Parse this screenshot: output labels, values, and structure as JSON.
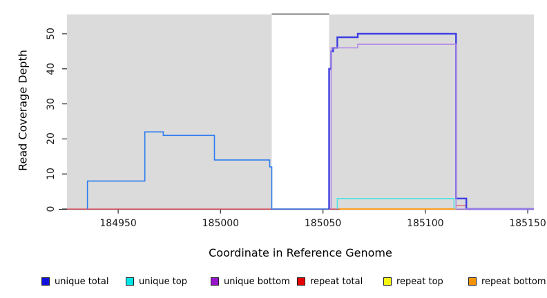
{
  "figure": {
    "xlabel": "Coordinate in Reference Genome",
    "ylabel": "Read Coverage Depth"
  },
  "chart_data": {
    "type": "line",
    "step": true,
    "title": "",
    "xlabel": "Coordinate in Reference Genome",
    "ylabel": "Read Coverage Depth",
    "xlim": [
      184925,
      185153
    ],
    "ylim": [
      0,
      55.5
    ],
    "x_ticks": [
      184950,
      185000,
      185050,
      185100,
      185150
    ],
    "y_ticks": [
      0,
      10,
      20,
      30,
      40,
      50
    ],
    "grid": false,
    "legend_position": "bottom",
    "panel_color": "#DBDBDB",
    "band_border_color": "#8f8f8f",
    "axis_color": "#333333",
    "highlight_region": {
      "x0": 185025,
      "x1": 185053,
      "color": "#FFFFFF"
    },
    "series": [
      {
        "name": "unique total",
        "legend_color": "#1111DD",
        "z": 4,
        "segments": [
          {
            "color": "#2D7DF0",
            "width": 1.6,
            "points": [
              [
                184935,
                0
              ],
              [
                184935,
                8
              ],
              [
                184963,
                8
              ],
              [
                184963,
                22
              ],
              [
                184972,
                22
              ],
              [
                184972,
                21
              ],
              [
                184997,
                21
              ],
              [
                184997,
                14
              ],
              [
                185024,
                14
              ],
              [
                185024,
                12
              ],
              [
                185025,
                12
              ],
              [
                185025,
                0
              ],
              [
                185053,
                0
              ]
            ]
          },
          {
            "color": "#3C3CE4",
            "width": 2.4,
            "points": [
              [
                185053,
                0
              ],
              [
                185053,
                40
              ],
              [
                185054,
                40
              ],
              [
                185054,
                45
              ],
              [
                185055,
                45
              ],
              [
                185055,
                46
              ],
              [
                185057,
                46
              ],
              [
                185057,
                49
              ],
              [
                185067,
                49
              ],
              [
                185067,
                50
              ],
              [
                185115,
                50
              ],
              [
                185115,
                3
              ],
              [
                185120,
                3
              ],
              [
                185120,
                0
              ],
              [
                185153,
                0
              ]
            ]
          }
        ]
      },
      {
        "name": "unique top",
        "legend_color": "#00E5E5",
        "z": 3,
        "segments": [
          {
            "color": "#4FE3E3",
            "width": 1.6,
            "points": [
              [
                185057,
                0
              ],
              [
                185057,
                3
              ],
              [
                185114,
                3
              ],
              [
                185114,
                0
              ]
            ]
          }
        ]
      },
      {
        "name": "unique bottom",
        "legend_color": "#9715C9",
        "z": 5,
        "segments": [
          {
            "color": "#B58BE4",
            "width": 1.6,
            "points": [
              [
                185054,
                0
              ],
              [
                185054,
                46
              ],
              [
                185067,
                46
              ],
              [
                185067,
                47
              ],
              [
                185115,
                47
              ],
              [
                185115,
                0
              ],
              [
                185153,
                0
              ]
            ]
          }
        ]
      },
      {
        "name": "repeat total",
        "legend_color": "#E60000",
        "z": 1,
        "segments": [
          {
            "color": "#E85D6E",
            "width": 1.4,
            "points": [
              [
                184925,
                0
              ],
              [
                185115,
                0
              ],
              [
                185115,
                1
              ],
              [
                185120,
                1
              ],
              [
                185120,
                0
              ],
              [
                185153,
                0
              ]
            ]
          }
        ]
      },
      {
        "name": "repeat top",
        "legend_color": "#F5F50F",
        "z": 2,
        "segments": []
      },
      {
        "name": "repeat bottom",
        "legend_color": "#F59300",
        "z": 2,
        "segments": [
          {
            "color": "#FF9E1E",
            "width": 2,
            "points": [
              [
                185058,
                0
              ],
              [
                185115,
                0
              ]
            ]
          }
        ]
      }
    ]
  }
}
